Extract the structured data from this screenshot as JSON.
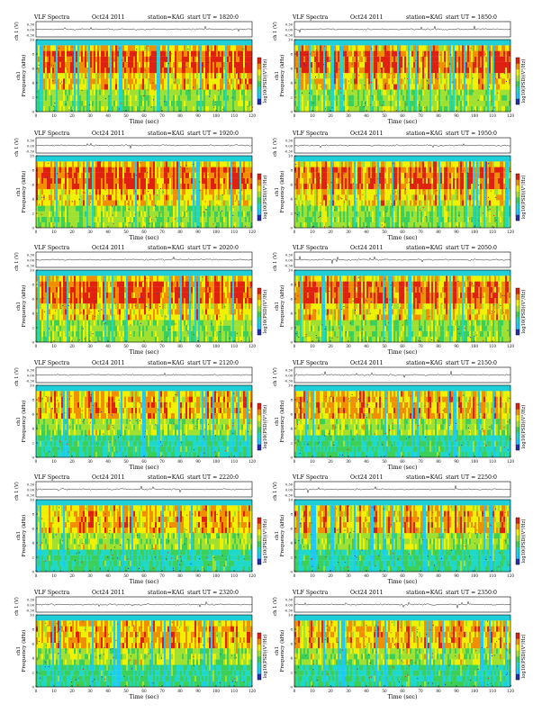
{
  "header_text": {
    "title": "VLF Spectra",
    "date": "Oct24 2011",
    "station": "station=KAG",
    "start": "start UT ="
  },
  "axis_text": {
    "top_ylabel": "ch 1 (V)",
    "spec_ylabel_a": "ch1",
    "spec_ylabel_b": "Frequency (kHz)",
    "xlabel": "Time (sec)",
    "colorbar_label": "log10(PSD)(V²/Hz)",
    "x_ticks": [
      "0",
      "10",
      "20",
      "30",
      "40",
      "50",
      "60",
      "70",
      "80",
      "90",
      "100",
      "110",
      "120"
    ],
    "y_ticks": [
      "0",
      "2",
      "4",
      "6",
      "8",
      "10"
    ],
    "top_ticks": [
      "0.30",
      "0.00",
      "-0.30"
    ]
  },
  "colors": {
    "colormap": [
      "#2030b0",
      "#1ec8ff",
      "#1fd8c8",
      "#3cd05a",
      "#9fe030",
      "#f0f000",
      "#f09000",
      "#e02010"
    ],
    "background_band": "#1ecfd8"
  },
  "panels": [
    {
      "start_time": "1820:0"
    },
    {
      "start_time": "1850:0"
    },
    {
      "start_time": "1920:0"
    },
    {
      "start_time": "1950:0"
    },
    {
      "start_time": "2020:0"
    },
    {
      "start_time": "2050:0"
    },
    {
      "start_time": "2120:0"
    },
    {
      "start_time": "2150:0"
    },
    {
      "start_time": "2220:0"
    },
    {
      "start_time": "2250:0"
    },
    {
      "start_time": "2320:0"
    },
    {
      "start_time": "2350:0"
    }
  ],
  "chart_data": {
    "type": "heatmap",
    "title": "VLF Spectra",
    "xlabel": "Time (sec)",
    "ylabel": "Frequency (kHz)",
    "xlim": [
      0,
      120
    ],
    "ylim": [
      0,
      10
    ],
    "top_trace_ylim": [
      -0.3,
      0.3
    ],
    "grid": false,
    "legend": "colorbar-right"
  }
}
